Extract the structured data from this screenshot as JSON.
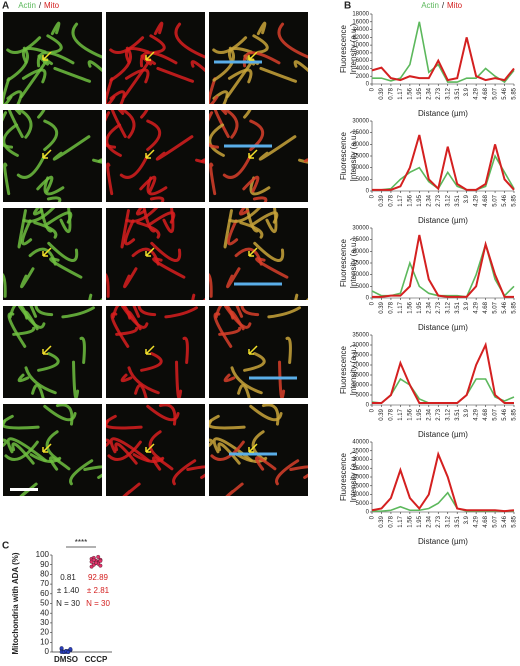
{
  "header": {
    "panel_a": "A",
    "panel_b": "B",
    "panel_c": "C",
    "separator": "/"
  },
  "chart_data": [
    {
      "type": "line",
      "x": [
        0,
        0.39,
        0.78,
        1.17,
        1.56,
        1.95,
        2.34,
        2.73,
        3.12,
        3.51,
        3.9,
        4.29,
        4.68,
        5.07,
        5.46,
        5.85
      ],
      "xlim": [
        0,
        5.85
      ],
      "xticks": [
        0,
        0.39,
        0.78,
        1.17,
        1.56,
        1.95,
        2.34,
        2.73,
        3.12,
        3.51,
        3.9,
        4.29,
        4.68,
        5.07,
        5.46,
        5.85
      ],
      "ylim": [
        0,
        18000
      ],
      "yticks": [
        0,
        2000,
        4000,
        6000,
        8000,
        10000,
        12000,
        14000,
        16000,
        18000
      ],
      "x_label": "Distance (µm)",
      "y_label": [
        "Fluorescence",
        "Intensity (a.u.)"
      ],
      "series": [
        {
          "name": "Actin",
          "color": "#5cb85c",
          "values": [
            1500,
            1500,
            800,
            1500,
            5000,
            16000,
            3000,
            5000,
            500,
            500,
            1500,
            1500,
            4000,
            2000,
            500,
            3500
          ]
        },
        {
          "name": "Mito",
          "color": "#d42020",
          "values": [
            3500,
            4200,
            1500,
            1000,
            2000,
            1500,
            1500,
            6000,
            1000,
            1500,
            12000,
            2000,
            1000,
            1500,
            1000,
            4000
          ]
        }
      ]
    },
    {
      "type": "line",
      "x": [
        0,
        0.39,
        0.78,
        1.17,
        1.56,
        1.95,
        2.34,
        2.73,
        3.12,
        3.51,
        3.9,
        4.29,
        4.68,
        5.07,
        5.46,
        5.85
      ],
      "xlim": [
        0,
        5.85
      ],
      "xticks": [
        0,
        0.39,
        0.78,
        1.17,
        1.56,
        1.95,
        2.34,
        2.73,
        3.12,
        3.51,
        3.9,
        4.29,
        4.68,
        5.07,
        5.46,
        5.85
      ],
      "ylim": [
        0,
        30000
      ],
      "yticks": [
        0,
        5000,
        10000,
        15000,
        20000,
        25000,
        30000
      ],
      "x_label": "Distance (µm)",
      "y_label": [
        "Fluorescence",
        "Intensity (a.u.)"
      ],
      "series": [
        {
          "name": "Actin",
          "color": "#5cb85c",
          "values": [
            500,
            500,
            1000,
            5000,
            8000,
            10000,
            4000,
            1000,
            8000,
            2000,
            500,
            500,
            2000,
            15000,
            8000,
            1000
          ]
        },
        {
          "name": "Mito",
          "color": "#d42020",
          "values": [
            500,
            500,
            500,
            2000,
            10000,
            24000,
            5000,
            1000,
            19000,
            3000,
            500,
            500,
            3000,
            20000,
            5000,
            500
          ]
        }
      ]
    },
    {
      "type": "line",
      "x": [
        0,
        0.39,
        0.78,
        1.17,
        1.56,
        1.95,
        2.34,
        2.73,
        3.12,
        3.51,
        3.9,
        4.29,
        4.68,
        5.07,
        5.46,
        5.85
      ],
      "xlim": [
        0,
        5.85
      ],
      "xticks": [
        0,
        0.39,
        0.78,
        1.17,
        1.56,
        1.95,
        2.34,
        2.73,
        3.12,
        3.51,
        3.9,
        4.29,
        4.68,
        5.07,
        5.46,
        5.85
      ],
      "ylim": [
        0,
        30000
      ],
      "yticks": [
        0,
        5000,
        10000,
        15000,
        20000,
        25000,
        30000
      ],
      "x_label": "Distance (µm)",
      "y_label": [
        "Fluorescence",
        "Intensity (a.u.)"
      ],
      "series": [
        {
          "name": "Actin",
          "color": "#5cb85c",
          "values": [
            3000,
            1000,
            1000,
            2000,
            15000,
            5000,
            2000,
            1000,
            1000,
            1000,
            500,
            10000,
            23000,
            8000,
            1000,
            5000
          ]
        },
        {
          "name": "Mito",
          "color": "#d42020",
          "values": [
            500,
            500,
            1000,
            1000,
            5000,
            27000,
            8000,
            1000,
            500,
            500,
            500,
            5000,
            23000,
            10000,
            500,
            500
          ]
        }
      ]
    },
    {
      "type": "line",
      "x": [
        0,
        0.39,
        0.78,
        1.17,
        1.56,
        1.95,
        2.34,
        2.73,
        3.12,
        3.51,
        3.9,
        4.29,
        4.68,
        5.07,
        5.46,
        5.85
      ],
      "xlim": [
        0,
        5.85
      ],
      "xticks": [
        0,
        0.39,
        0.78,
        1.17,
        1.56,
        1.95,
        2.34,
        2.73,
        3.12,
        3.51,
        3.9,
        4.29,
        4.68,
        5.07,
        5.46,
        5.85
      ],
      "ylim": [
        0,
        35000
      ],
      "yticks": [
        0,
        5000,
        10000,
        15000,
        20000,
        25000,
        30000,
        35000
      ],
      "x_label": "Distance (µm)",
      "y_label": [
        "Fluorescence",
        "Intensity (a.u.)"
      ],
      "series": [
        {
          "name": "Actin",
          "color": "#5cb85c",
          "values": [
            1500,
            1000,
            5000,
            13000,
            10000,
            3000,
            1000,
            1000,
            1000,
            1000,
            5000,
            13000,
            13000,
            4000,
            2000,
            4000
          ]
        },
        {
          "name": "Mito",
          "color": "#d42020",
          "values": [
            1000,
            1000,
            5000,
            21000,
            10000,
            1000,
            1000,
            1000,
            1000,
            1000,
            5000,
            20000,
            30000,
            5000,
            1000,
            1000
          ]
        }
      ]
    },
    {
      "type": "line",
      "x": [
        0,
        0.39,
        0.78,
        1.17,
        1.56,
        1.95,
        2.34,
        2.73,
        3.12,
        3.51,
        3.9,
        4.29,
        4.68,
        5.07,
        5.46,
        5.85
      ],
      "xlim": [
        0,
        5.85
      ],
      "xticks": [
        0,
        0.39,
        0.78,
        1.17,
        1.56,
        1.95,
        2.34,
        2.73,
        3.12,
        3.51,
        3.9,
        4.29,
        4.68,
        5.07,
        5.46,
        5.85
      ],
      "ylim": [
        0,
        40000
      ],
      "yticks": [
        0,
        5000,
        10000,
        15000,
        20000,
        25000,
        30000,
        35000,
        40000
      ],
      "x_label": "Distance (µm)",
      "y_label": [
        "Fluorescence",
        "Intensity (a.u.)"
      ],
      "series": [
        {
          "name": "Actin",
          "color": "#5cb85c",
          "values": [
            500,
            500,
            1000,
            3000,
            1000,
            1000,
            2000,
            5000,
            11000,
            2000,
            500,
            500,
            500,
            500,
            500,
            500
          ]
        },
        {
          "name": "Mito",
          "color": "#d42020",
          "values": [
            1000,
            2000,
            8000,
            24000,
            8000,
            2000,
            10000,
            33000,
            20000,
            2000,
            1000,
            1000,
            1000,
            1000,
            500,
            1000
          ]
        }
      ]
    },
    {
      "type": "dotplot",
      "y_label": "Mitochondria with ADA (%)",
      "categories": [
        "DMSO",
        "CCCP"
      ],
      "ylim": [
        0,
        100
      ],
      "yticks": [
        0,
        10,
        20,
        30,
        40,
        50,
        60,
        70,
        80,
        90,
        100
      ],
      "significance": "****",
      "groups": [
        {
          "color": "#2a3fbf",
          "stats": [
            "0.81",
            "± 1.40",
            "N = 30"
          ],
          "stats_color": "#222222",
          "values": [
            0,
            0,
            0,
            1,
            2,
            3,
            0,
            1,
            0,
            2,
            4,
            0,
            1,
            0,
            3
          ]
        },
        {
          "color": "#e0336a",
          "stats": [
            "92.89",
            "± 2.81",
            "N = 30"
          ],
          "stats_color": "#d42020",
          "values": [
            88,
            90,
            92,
            93,
            95,
            96,
            97,
            94,
            91,
            89,
            93,
            95,
            92,
            98,
            94
          ]
        }
      ]
    }
  ]
}
